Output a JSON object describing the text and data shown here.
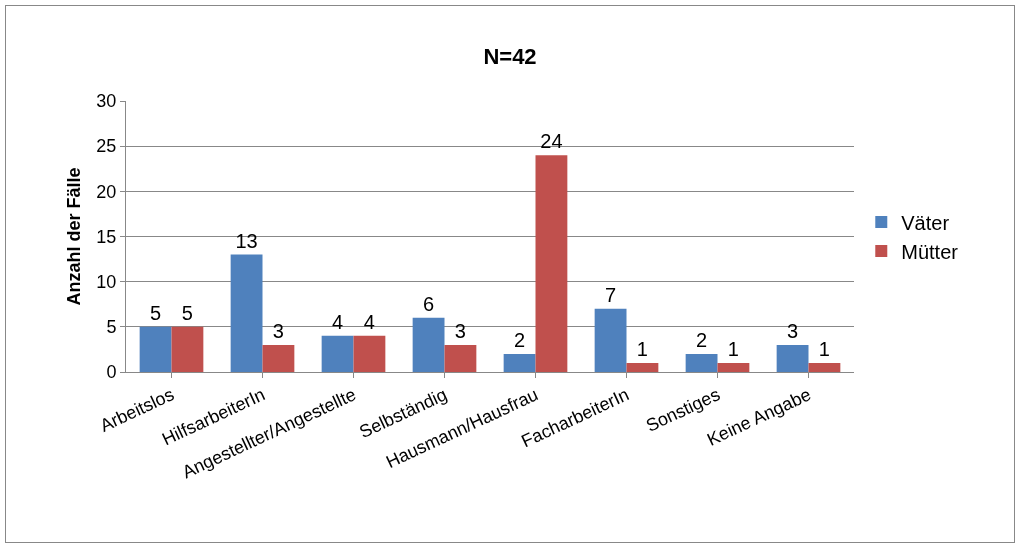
{
  "chart_data": {
    "type": "bar",
    "title": "N=42",
    "ylabel": "Anzahl der Fälle",
    "categories": [
      "Arbeitslos",
      "HilfsarbeiterIn",
      "Angestellter/Angestellte",
      "Selbständig",
      "Hausmann/Hausfrau",
      "FacharbeiterIn",
      "Sonstiges",
      "Keine Angabe"
    ],
    "series": [
      {
        "name": "Väter",
        "color": "#4f81bd",
        "values": [
          5,
          13,
          4,
          6,
          2,
          7,
          2,
          3
        ]
      },
      {
        "name": "Mütter",
        "color": "#c0504d",
        "values": [
          5,
          3,
          4,
          3,
          24,
          1,
          1,
          1
        ]
      }
    ],
    "ylim": [
      0,
      30
    ],
    "yticks": [
      0,
      5,
      10,
      15,
      20,
      25,
      30
    ],
    "grid": "y",
    "legend": "right",
    "data_labels": true
  }
}
